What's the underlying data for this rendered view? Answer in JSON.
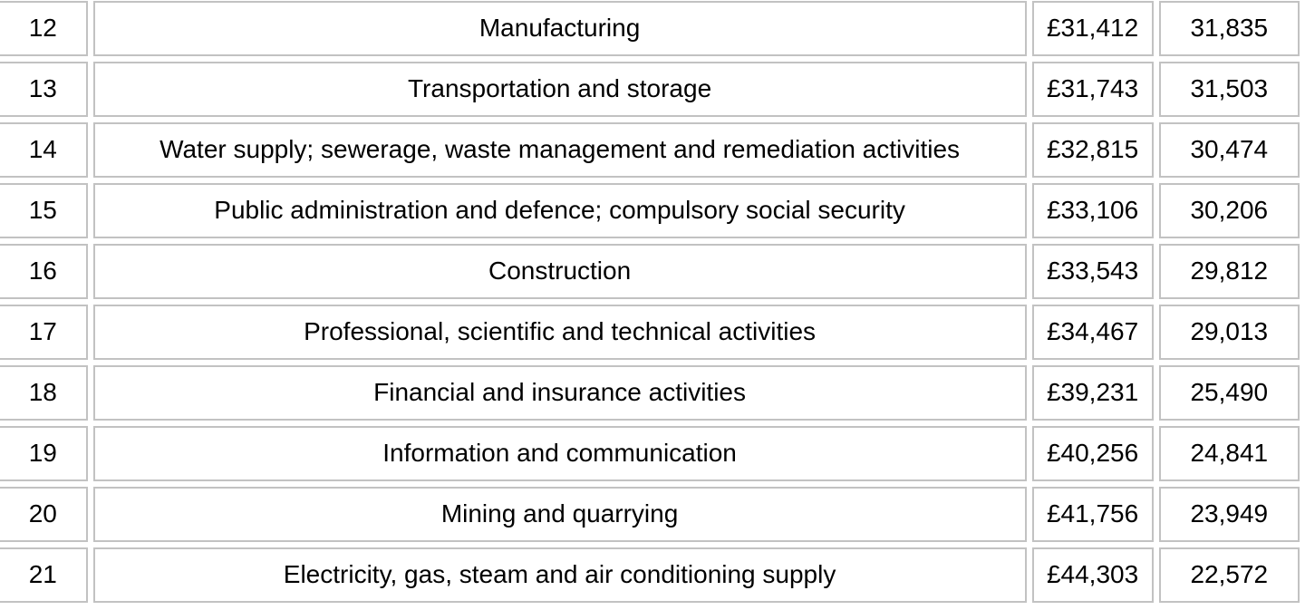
{
  "table": {
    "description": "Industry salary table (rows 12-21)",
    "rows": [
      {
        "index": "12",
        "industry": "Manufacturing",
        "salary": "£31,412",
        "count": "31,835"
      },
      {
        "index": "13",
        "industry": "Transportation and storage",
        "salary": "£31,743",
        "count": "31,503"
      },
      {
        "index": "14",
        "industry": "Water supply; sewerage, waste management and remediation activities",
        "salary": "£32,815",
        "count": "30,474"
      },
      {
        "index": "15",
        "industry": "Public administration and defence; compulsory social security",
        "salary": "£33,106",
        "count": "30,206"
      },
      {
        "index": "16",
        "industry": "Construction",
        "salary": "£33,543",
        "count": "29,812"
      },
      {
        "index": "17",
        "industry": "Professional, scientific and technical activities",
        "salary": "£34,467",
        "count": "29,013"
      },
      {
        "index": "18",
        "industry": "Financial and insurance activities",
        "salary": "£39,231",
        "count": "25,490"
      },
      {
        "index": "19",
        "industry": "Information and communication",
        "salary": "£40,256",
        "count": "24,841"
      },
      {
        "index": "20",
        "industry": "Mining and quarrying",
        "salary": "£41,756",
        "count": "23,949"
      },
      {
        "index": "21",
        "industry": "Electricity, gas, steam and air conditioning supply",
        "salary": "£44,303",
        "count": "22,572"
      }
    ],
    "colors": {
      "cell_border": "#c2c2c2",
      "cell_background": "#ffffff",
      "text": "#000000"
    }
  }
}
